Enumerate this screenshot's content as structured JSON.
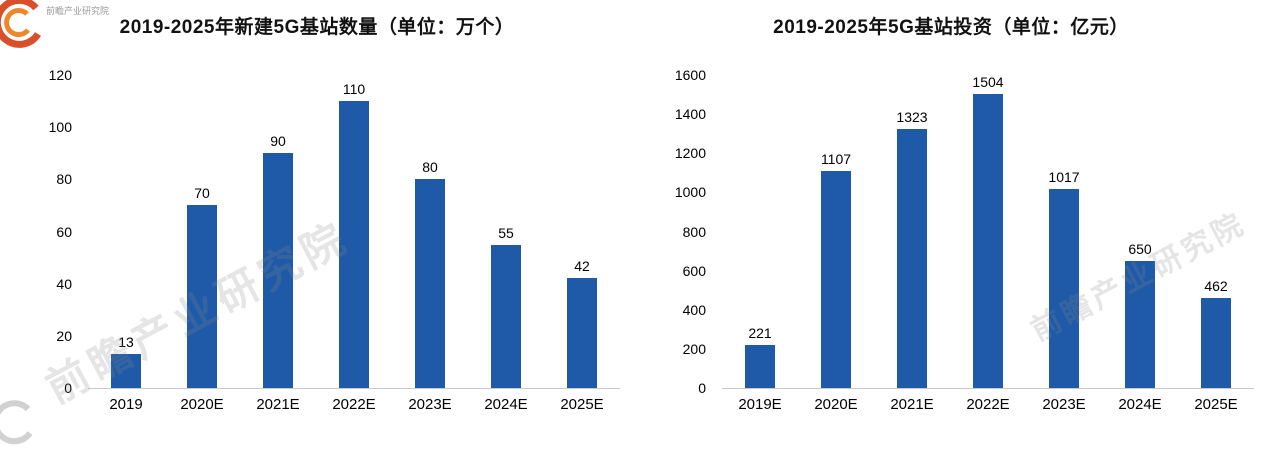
{
  "watermark": {
    "brand_text": "前瞻产业研究院",
    "logo_color_outer": "#D94F2B",
    "logo_color_inner": "#F0862B"
  },
  "chart_data": [
    {
      "type": "bar",
      "title": "2019-2025年新建5G基站数量（单位：万个）",
      "categories": [
        "2019",
        "2020E",
        "2021E",
        "2022E",
        "2023E",
        "2024E",
        "2025E"
      ],
      "values": [
        13,
        70,
        90,
        110,
        80,
        55,
        42
      ],
      "ylim": [
        0,
        120
      ],
      "ytick_step": 20,
      "bar_color": "#1F5AA8",
      "grid": false,
      "legend": "none"
    },
    {
      "type": "bar",
      "title": "2019-2025年5G基站投资（单位：亿元）",
      "categories": [
        "2019E",
        "2020E",
        "2021E",
        "2022E",
        "2023E",
        "2024E",
        "2025E"
      ],
      "values": [
        221,
        1107,
        1323,
        1504,
        1017,
        650,
        462
      ],
      "ylim": [
        0,
        1600
      ],
      "ytick_step": 200,
      "bar_color": "#1F5AA8",
      "grid": false,
      "legend": "none"
    }
  ]
}
